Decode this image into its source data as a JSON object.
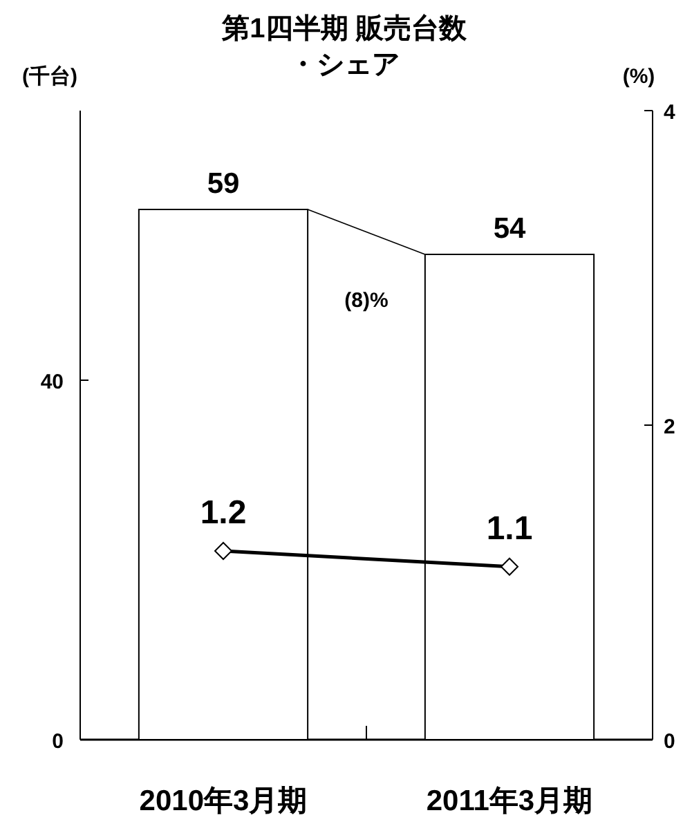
{
  "chart_data": {
    "type": "bar",
    "title": "第1四半期 販売台数・シェア",
    "ylabel": "(千台)",
    "y2label": "(%)",
    "categories": [
      "2010年3月期",
      "2011年3月期"
    ],
    "series": [
      {
        "color": "#ffffff",
        "values": [
          59,
          54
        ]
      },
      {
        "type": "line",
        "axis": "y2",
        "color": "#000000",
        "marker": "diamond",
        "values": [
          1.2,
          1.1
        ]
      }
    ],
    "annotations": [
      "(8)%"
    ],
    "data_labels": true,
    "ylim": [
      0,
      70
    ],
    "yticks": [
      0,
      40
    ],
    "y2lim": [
      0,
      4
    ],
    "y2ticks": [
      0,
      2,
      4
    ],
    "grid": false
  }
}
